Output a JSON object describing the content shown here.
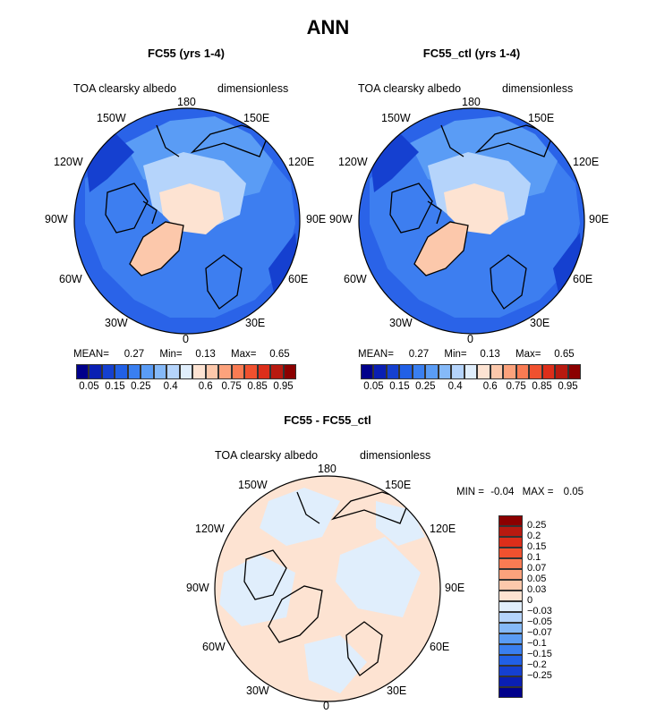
{
  "title": "ANN",
  "panels": [
    {
      "subtitle": "FC55 (yrs 1-4)",
      "variable": "TOA clearsky albedo",
      "units": "dimensionless",
      "stats": {
        "mean_label": "MEAN=",
        "mean": "0.27",
        "min_label": "Min=",
        "min": "0.13",
        "max_label": "Max=",
        "max": "0.65"
      }
    },
    {
      "subtitle": "FC55_ctl (yrs 1-4)",
      "variable": "TOA clearsky albedo",
      "units": "dimensionless",
      "stats": {
        "mean_label": "MEAN=",
        "mean": "0.27",
        "min_label": "Min=",
        "min": "0.13",
        "max_label": "Max=",
        "max": "0.65"
      }
    },
    {
      "subtitle": "FC55 - FC55_ctl",
      "variable": "TOA clearsky albedo",
      "units": "dimensionless",
      "stats": {
        "min_label": "MIN =",
        "min": "-0.04",
        "max_label": "MAX =",
        "max": "0.05"
      }
    }
  ],
  "longitude_labels": {
    "top": "180",
    "bottom": "0",
    "tl1": "150W",
    "tr1": "150E",
    "tl2": "120W",
    "tr2": "120E",
    "l": "90W",
    "r": "90E",
    "bl1": "60W",
    "br1": "60E",
    "bl2": "30W",
    "br2": "30E"
  },
  "abs_colorbar": {
    "colors": [
      "#00008b",
      "#0a1fb3",
      "#1540d0",
      "#2160e6",
      "#3a7ff0",
      "#5a9cf5",
      "#85b9f8",
      "#b5d4fb",
      "#e0eefc",
      "#fde3d2",
      "#fcc8ab",
      "#fca27c",
      "#f97b53",
      "#f0512f",
      "#dd2e1a",
      "#b81a10",
      "#8b0000"
    ],
    "labels": [
      "0.05",
      "0.15",
      "0.25",
      "0.4",
      "0.6",
      "0.75",
      "0.85",
      "0.95"
    ]
  },
  "diff_colorbar": {
    "colors": [
      "#8b0000",
      "#b81a10",
      "#dd2e1a",
      "#f0512f",
      "#f97b53",
      "#fca27c",
      "#fcc8ab",
      "#fde3d2",
      "#e0eefc",
      "#b5d4fb",
      "#85b9f8",
      "#5a9cf5",
      "#3a7ff0",
      "#2160e6",
      "#1540d0",
      "#0a1fb3",
      "#00008b"
    ],
    "labels": [
      "0.25",
      "0.2",
      "0.15",
      "0.1",
      "0.07",
      "0.05",
      "0.03",
      "0",
      "−0.03",
      "−0.05",
      "−0.07",
      "−0.1",
      "−0.15",
      "−0.2",
      "−0.25"
    ]
  }
}
